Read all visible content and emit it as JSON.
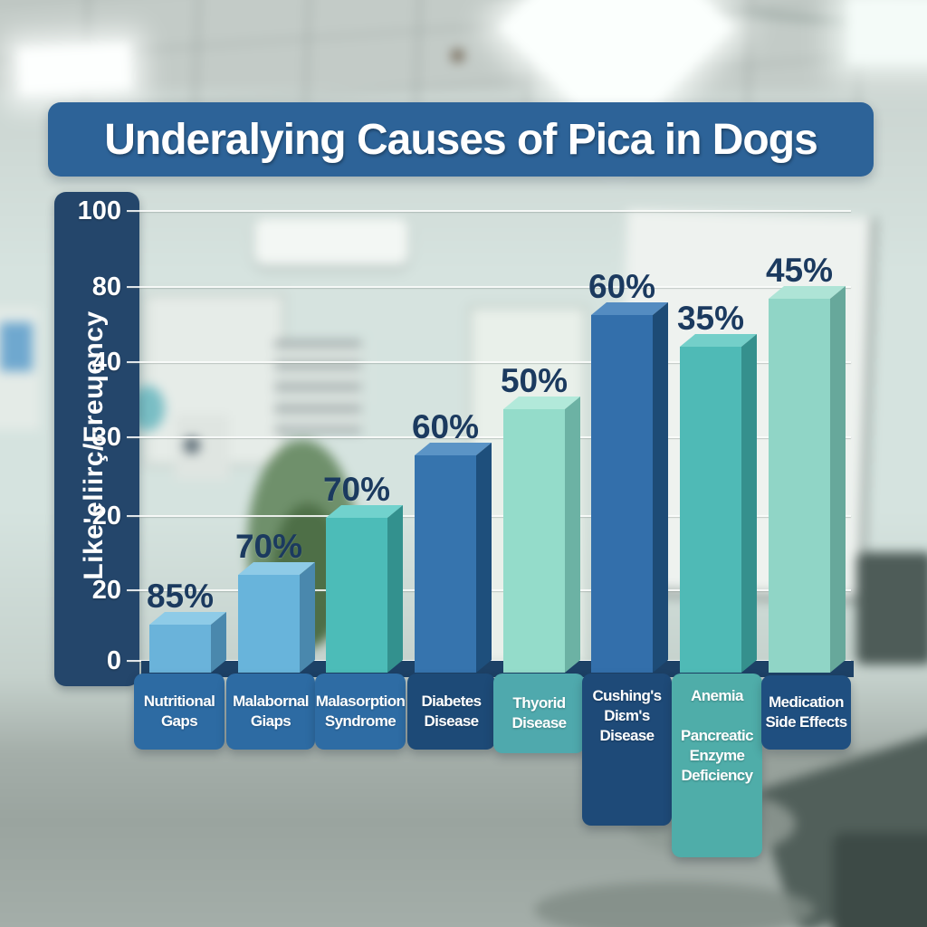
{
  "chart_data": {
    "type": "bar",
    "title": "Underalying Causes of Pica in Dogs",
    "ylabel": "Like'eliirç/Freɰency",
    "ylim": [
      0,
      100
    ],
    "grid": true,
    "legend": "none",
    "y_tick_labels": [
      "100",
      "80",
      "40",
      "30",
      "20",
      "20",
      "0"
    ],
    "categories": [
      "Nutritional Gaps",
      "Malabornal Giaps",
      "Malasorption Syndrome",
      "Diabetes Disease",
      "Thyorid Disease",
      "Cushing's Diɛm's Disease",
      "Anemia Pancreatic Enzyme Deficiency",
      "Medication Side Effects"
    ],
    "values": [
      85,
      70,
      70,
      60,
      50,
      60,
      35,
      45
    ],
    "value_labels": [
      "85%",
      "70%",
      "70%",
      "60%",
      "50%",
      "60%",
      "35%",
      "45%"
    ],
    "bars": [
      {
        "front": "#6ab3da",
        "side": "#4a88ad",
        "topface": "#8ecbe7"
      },
      {
        "front": "#68b4db",
        "side": "#4a88ad",
        "topface": "#8ecbe7"
      },
      {
        "front": "#4cbcb8",
        "side": "#33918e",
        "topface": "#71d2cd"
      },
      {
        "front": "#3674ae",
        "side": "#1e4f7c",
        "topface": "#5b94c6"
      },
      {
        "front": "#94dcca",
        "side": "#6cb2a4",
        "topface": "#b2e9da"
      },
      {
        "front": "#336fab",
        "side": "#1d4b76",
        "topface": "#548cc1"
      },
      {
        "front": "#4fbab6",
        "side": "#35908d",
        "topface": "#74cfc9"
      },
      {
        "front": "#90d5c6",
        "side": "#67a89b",
        "topface": "#aee4d6"
      }
    ],
    "tiles": [
      {
        "lines": "Nutritional\nGaps",
        "color": "#2d6ba3"
      },
      {
        "lines": "Malabornal\nGiaps",
        "color": "#2d6ba3"
      },
      {
        "lines": "Malasorption\nSyndrome",
        "color": "#2e6ca4"
      },
      {
        "lines": "Diabetes\nDisease",
        "color": "#1d4a77"
      },
      {
        "lines": "Thyorid\nDisease",
        "color": "#4fa9ad"
      },
      {
        "lines": "Cushing's\nDiɛm's\nDisease",
        "color": "#1e4a78"
      },
      {
        "lines": "Anemia\n\nPancreatic\nEnzyme\nDeficiency",
        "color": "#4fada9"
      },
      {
        "lines": "Medication\nSide Effects",
        "color": "#1f4f80"
      }
    ],
    "colors": {
      "banner": "#2d6398",
      "axis_panel": "#24466b",
      "value_label": "#1b3a5f",
      "pedestal": "#1d4166"
    }
  }
}
